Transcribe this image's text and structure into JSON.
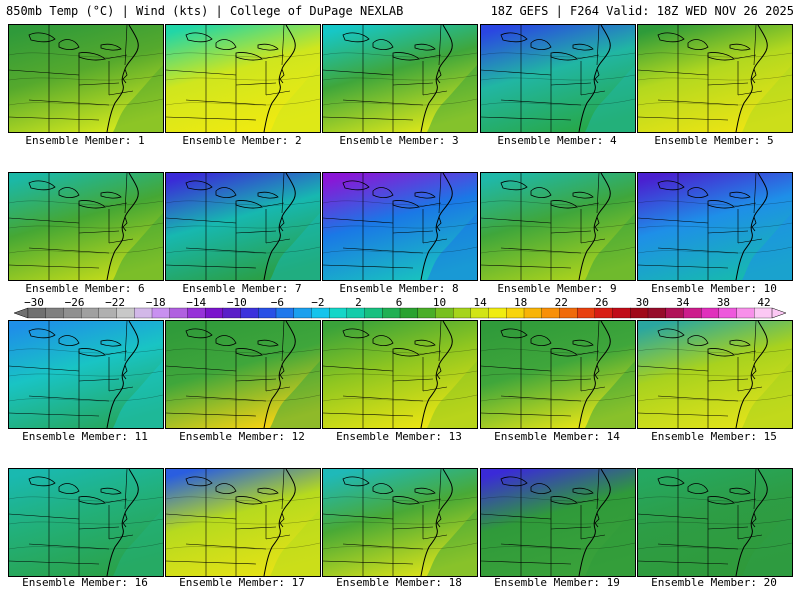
{
  "header": {
    "left": "850mb Temp (°C) | Wind (kts) | College of DuPage NEXLAB",
    "right": "18Z GEFS | F264 Valid: 18Z WED NOV 26 2025"
  },
  "members": [
    {
      "label": "Ensemble Member: 1",
      "base": "#55a92d",
      "north": "#2f9a3a",
      "south": "#cfe61e"
    },
    {
      "label": "Ensemble Member: 2",
      "base": "#cfe61e",
      "north": "#21d6a7",
      "south": "#f0ea10"
    },
    {
      "label": "Ensemble Member: 3",
      "base": "#3fa63b",
      "north": "#16c7c7",
      "south": "#d7e51c"
    },
    {
      "label": "Ensemble Member: 4",
      "base": "#21b6a3",
      "north": "#2a46e2",
      "south": "#27a84a"
    },
    {
      "label": "Ensemble Member: 5",
      "base": "#b3d81f",
      "north": "#2e9b3a",
      "south": "#eae414"
    },
    {
      "label": "Ensemble Member: 6",
      "base": "#45a734",
      "north": "#1bb8a6",
      "south": "#bcd91c"
    },
    {
      "label": "Ensemble Member: 7",
      "base": "#17b8b0",
      "north": "#3a2ad8",
      "south": "#2a9f46"
    },
    {
      "label": "Ensemble Member: 8",
      "base": "#1a78e6",
      "north": "#8a16d6",
      "south": "#19c0c0"
    },
    {
      "label": "Ensemble Member: 9",
      "base": "#3fa63b",
      "north": "#1fb8a8",
      "south": "#a8d21e"
    },
    {
      "label": "Ensemble Member: 10",
      "base": "#1e8fe8",
      "north": "#4a20d0",
      "south": "#17b8b0"
    },
    {
      "label": "Ensemble Member: 11",
      "base": "#19c4c4",
      "north": "#1e8fe8",
      "south": "#25a862"
    },
    {
      "label": "Ensemble Member: 12",
      "base": "#3fa63b",
      "north": "#2f9a3a",
      "south": "#f0d214"
    },
    {
      "label": "Ensemble Member: 13",
      "base": "#8fc620",
      "north": "#3aa23a",
      "south": "#e8e414"
    },
    {
      "label": "Ensemble Member: 14",
      "base": "#3fa63b",
      "north": "#2f9a3a",
      "south": "#e0e218"
    },
    {
      "label": "Ensemble Member: 15",
      "base": "#a8d21e",
      "north": "#2aa6a0",
      "south": "#dfe21a"
    },
    {
      "label": "Ensemble Member: 16",
      "base": "#22b07a",
      "north": "#1ab9b0",
      "south": "#2aa24a"
    },
    {
      "label": "Ensemble Member: 17",
      "base": "#b6da1e",
      "north": "#2a5ee0",
      "south": "#e4e216"
    },
    {
      "label": "Ensemble Member: 18",
      "base": "#49a936",
      "north": "#1fb9b9",
      "south": "#d4e01c"
    },
    {
      "label": "Ensemble Member: 19",
      "base": "#2f9a3a",
      "north": "#3a2ad8",
      "south": "#3aa23a"
    },
    {
      "label": "Ensemble Member: 20",
      "base": "#2d9d45",
      "north": "#25a862",
      "south": "#2f9a3a"
    }
  ],
  "colorbar": {
    "labels": [
      "−30",
      "−26",
      "−22",
      "−18",
      "−14",
      "−10",
      "−6",
      "−2",
      "2",
      "6",
      "10",
      "14",
      "18",
      "22",
      "26",
      "30",
      "34",
      "38",
      "42"
    ],
    "colors": [
      "#707070",
      "#808080",
      "#909090",
      "#a0a0a0",
      "#b0b0b0",
      "#c8c8c8",
      "#d2b8e8",
      "#c890f0",
      "#b060e0",
      "#9632d8",
      "#7a14cc",
      "#5a1ec8",
      "#3c32dc",
      "#2850e6",
      "#1e78ec",
      "#1aa0ee",
      "#14c4ec",
      "#14d6c8",
      "#14ccaa",
      "#18c080",
      "#20b054",
      "#2aa230",
      "#4aae28",
      "#78c020",
      "#a6d41c",
      "#d2e416",
      "#f0ec10",
      "#f8d40c",
      "#f8b408",
      "#f89008",
      "#f06a0a",
      "#e8400e",
      "#d81e14",
      "#c00c18",
      "#a00818",
      "#960c2a",
      "#b01258",
      "#cc1c8c",
      "#e030bc",
      "#ee58dc",
      "#f890ea",
      "#fcc8f4"
    ]
  }
}
